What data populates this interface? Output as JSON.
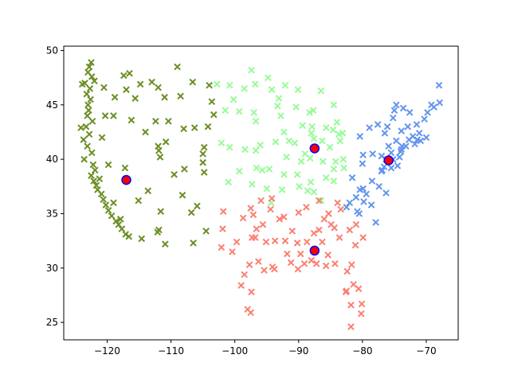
{
  "chart_data": {
    "type": "scatter",
    "title": "",
    "xlabel": "",
    "ylabel": "",
    "xlim": [
      -126.8,
      -65.0
    ],
    "ylim": [
      23.4,
      50.4
    ],
    "grid": false,
    "xticks": [
      -120,
      -110,
      -100,
      -90,
      -80,
      -70
    ],
    "yticks": [
      25,
      30,
      35,
      40,
      45,
      50
    ],
    "xtick_labels": [
      "−120",
      "−110",
      "−100",
      "−90",
      "−80",
      "−70"
    ],
    "ytick_labels": [
      "25",
      "30",
      "35",
      "40",
      "45",
      "50"
    ],
    "series": [
      {
        "color": "#6b8e23",
        "marker": "x",
        "points": [
          [
            -122.5,
            48.9
          ],
          [
            -122.8,
            48.5
          ],
          [
            -123.0,
            48.0
          ],
          [
            -122.4,
            47.6
          ],
          [
            -122.0,
            47.2
          ],
          [
            -123.5,
            47.0
          ],
          [
            -122.7,
            46.5
          ],
          [
            -123.2,
            46.0
          ],
          [
            -122.6,
            45.5
          ],
          [
            -123.0,
            45.0
          ],
          [
            -122.9,
            44.5
          ],
          [
            -123.1,
            44.0
          ],
          [
            -122.3,
            43.5
          ],
          [
            -123.3,
            43.0
          ],
          [
            -122.8,
            42.3
          ],
          [
            -123.7,
            41.8
          ],
          [
            -123.1,
            41.2
          ],
          [
            -122.4,
            40.6
          ],
          [
            -123.6,
            40.0
          ],
          [
            -122.2,
            39.5
          ],
          [
            -121.9,
            39.0
          ],
          [
            -122.5,
            38.5
          ],
          [
            -122.1,
            38.0
          ],
          [
            -121.7,
            37.6
          ],
          [
            -121.5,
            37.2
          ],
          [
            -120.9,
            36.8
          ],
          [
            -120.6,
            36.3
          ],
          [
            -120.2,
            35.8
          ],
          [
            -119.8,
            35.3
          ],
          [
            -119.3,
            34.8
          ],
          [
            -118.6,
            34.3
          ],
          [
            -118.2,
            34.0
          ],
          [
            -117.7,
            33.6
          ],
          [
            -117.1,
            33.1
          ],
          [
            -116.6,
            32.9
          ],
          [
            -117.9,
            34.5
          ],
          [
            -119.0,
            36.0
          ],
          [
            -121.2,
            38.2
          ],
          [
            -124.1,
            42.9
          ],
          [
            -123.9,
            46.9
          ],
          [
            -117.4,
            47.7
          ],
          [
            -116.5,
            47.9
          ],
          [
            -114.8,
            46.9
          ],
          [
            -112.0,
            46.6
          ],
          [
            -111.0,
            45.7
          ],
          [
            -108.5,
            45.8
          ],
          [
            -106.6,
            47.1
          ],
          [
            -104.0,
            46.8
          ],
          [
            -116.2,
            43.6
          ],
          [
            -114.0,
            42.5
          ],
          [
            -112.4,
            43.5
          ],
          [
            -111.9,
            40.8
          ],
          [
            -111.7,
            40.2
          ],
          [
            -112.0,
            41.2
          ],
          [
            -110.8,
            41.6
          ],
          [
            -108.0,
            42.8
          ],
          [
            -106.3,
            42.9
          ],
          [
            -104.8,
            41.1
          ],
          [
            -105.0,
            39.7
          ],
          [
            -104.8,
            38.8
          ],
          [
            -105.0,
            40.5
          ],
          [
            -107.9,
            39.1
          ],
          [
            -106.8,
            35.1
          ],
          [
            -105.9,
            35.7
          ],
          [
            -108.2,
            36.7
          ],
          [
            -104.5,
            33.4
          ],
          [
            -106.5,
            32.3
          ],
          [
            -111.9,
            33.5
          ],
          [
            -110.9,
            32.2
          ],
          [
            -112.1,
            33.3
          ],
          [
            -111.6,
            35.2
          ],
          [
            -113.6,
            37.1
          ],
          [
            -115.1,
            36.2
          ],
          [
            -119.8,
            39.5
          ],
          [
            -117.2,
            39.2
          ],
          [
            -114.6,
            32.7
          ],
          [
            -109.5,
            38.6
          ],
          [
            -103.3,
            44.1
          ],
          [
            -104.2,
            43.0
          ],
          [
            -103.6,
            45.3
          ],
          [
            -110.4,
            43.5
          ],
          [
            -109.0,
            48.5
          ],
          [
            -113.0,
            47.1
          ],
          [
            -115.6,
            45.6
          ],
          [
            -117.0,
            46.4
          ],
          [
            -118.8,
            45.7
          ],
          [
            -120.5,
            46.6
          ],
          [
            -120.3,
            44.0
          ],
          [
            -119.0,
            44.0
          ],
          [
            -120.8,
            42.0
          ]
        ]
      },
      {
        "color": "#98fb98",
        "marker": "x",
        "points": [
          [
            -87.6,
            41.9
          ],
          [
            -88.0,
            42.4
          ],
          [
            -87.9,
            43.0
          ],
          [
            -89.4,
            43.1
          ],
          [
            -88.3,
            44.3
          ],
          [
            -87.7,
            44.5
          ],
          [
            -90.4,
            44.8
          ],
          [
            -93.3,
            44.9
          ],
          [
            -93.1,
            45.6
          ],
          [
            -92.1,
            46.8
          ],
          [
            -94.2,
            46.4
          ],
          [
            -96.8,
            46.9
          ],
          [
            -98.5,
            46.5
          ],
          [
            -100.8,
            46.8
          ],
          [
            -97.0,
            44.3
          ],
          [
            -96.7,
            43.5
          ],
          [
            -99.3,
            44.4
          ],
          [
            -96.0,
            41.3
          ],
          [
            -96.7,
            40.8
          ],
          [
            -98.4,
            40.9
          ],
          [
            -100.8,
            41.1
          ],
          [
            -93.6,
            41.6
          ],
          [
            -91.5,
            41.7
          ],
          [
            -90.6,
            41.5
          ],
          [
            -92.3,
            42.5
          ],
          [
            -94.6,
            39.1
          ],
          [
            -92.3,
            38.6
          ],
          [
            -90.2,
            38.6
          ],
          [
            -89.6,
            39.8
          ],
          [
            -88.2,
            40.1
          ],
          [
            -89.0,
            40.5
          ],
          [
            -86.2,
            39.8
          ],
          [
            -85.1,
            41.1
          ],
          [
            -86.3,
            41.7
          ],
          [
            -84.6,
            42.7
          ],
          [
            -83.7,
            42.3
          ],
          [
            -83.1,
            42.4
          ],
          [
            -84.0,
            43.4
          ],
          [
            -85.7,
            42.9
          ],
          [
            -84.5,
            45.0
          ],
          [
            -83.5,
            41.7
          ],
          [
            -84.5,
            39.1
          ],
          [
            -83.0,
            40.0
          ],
          [
            -82.9,
            39.2
          ],
          [
            -84.2,
            39.8
          ],
          [
            -97.3,
            37.7
          ],
          [
            -95.7,
            39.0
          ],
          [
            -99.3,
            38.9
          ],
          [
            -101.0,
            37.9
          ],
          [
            -96.6,
            39.2
          ],
          [
            -85.7,
            38.3
          ],
          [
            -84.5,
            38.0
          ],
          [
            -87.6,
            37.0
          ],
          [
            -86.5,
            36.2
          ],
          [
            -92.6,
            37.2
          ],
          [
            -94.3,
            36.0
          ],
          [
            -95.0,
            37.3
          ],
          [
            -88.6,
            37.1
          ],
          [
            -89.9,
            37.5
          ],
          [
            -91.9,
            40.2
          ],
          [
            -102.8,
            46.9
          ],
          [
            -100.2,
            45.5
          ],
          [
            -97.4,
            48.2
          ],
          [
            -94.8,
            47.5
          ],
          [
            -101.5,
            44.5
          ],
          [
            -102.1,
            41.5
          ],
          [
            -92.8,
            44.0
          ],
          [
            -90.1,
            46.4
          ],
          [
            -86.5,
            46.3
          ],
          [
            -88.1,
            37.9
          ]
        ]
      },
      {
        "color": "#6495ed",
        "marker": "x",
        "points": [
          [
            -74.0,
            40.7
          ],
          [
            -73.8,
            41.2
          ],
          [
            -73.9,
            42.6
          ],
          [
            -76.1,
            43.0
          ],
          [
            -77.6,
            43.2
          ],
          [
            -78.9,
            42.9
          ],
          [
            -75.2,
            43.8
          ],
          [
            -73.6,
            44.7
          ],
          [
            -72.6,
            44.3
          ],
          [
            -71.5,
            43.2
          ],
          [
            -70.3,
            43.7
          ],
          [
            -69.8,
            44.3
          ],
          [
            -68.8,
            44.8
          ],
          [
            -67.9,
            45.2
          ],
          [
            -71.1,
            42.4
          ],
          [
            -71.4,
            41.8
          ],
          [
            -72.7,
            41.8
          ],
          [
            -73.2,
            41.2
          ],
          [
            -72.1,
            42.1
          ],
          [
            -70.9,
            41.7
          ],
          [
            -75.2,
            40.0
          ],
          [
            -76.3,
            40.0
          ],
          [
            -77.0,
            40.3
          ],
          [
            -79.9,
            40.4
          ],
          [
            -75.5,
            40.6
          ],
          [
            -74.2,
            40.2
          ],
          [
            -74.5,
            39.4
          ],
          [
            -75.5,
            39.2
          ],
          [
            -76.6,
            39.3
          ],
          [
            -77.0,
            38.9
          ],
          [
            -77.4,
            37.5
          ],
          [
            -76.3,
            36.9
          ],
          [
            -79.9,
            37.3
          ],
          [
            -78.5,
            38.0
          ],
          [
            -80.8,
            35.2
          ],
          [
            -78.6,
            35.8
          ],
          [
            -79.8,
            36.1
          ],
          [
            -77.9,
            34.2
          ],
          [
            -80.4,
            37.2
          ],
          [
            -81.6,
            38.3
          ],
          [
            -80.0,
            39.6
          ],
          [
            -82.5,
            35.6
          ],
          [
            -81.0,
            36.5
          ],
          [
            -76.5,
            42.4
          ],
          [
            -74.7,
            41.7
          ],
          [
            -73.9,
            40.9
          ],
          [
            -75.9,
            41.2
          ],
          [
            -78.4,
            40.5
          ],
          [
            -76.9,
            39.0
          ],
          [
            -79.4,
            36.8
          ],
          [
            -75.0,
            44.5
          ],
          [
            -72.9,
            43.0
          ],
          [
            -71.8,
            41.4
          ],
          [
            -70.0,
            42.0
          ],
          [
            -68.0,
            46.8
          ],
          [
            -69.2,
            45.0
          ],
          [
            -74.7,
            45.0
          ],
          [
            -80.4,
            42.1
          ],
          [
            -82.0,
            36.0
          ],
          [
            -80.5,
            35.0
          ]
        ]
      },
      {
        "color": "#fa8072",
        "marker": "x",
        "points": [
          [
            -90.1,
            29.9
          ],
          [
            -91.2,
            30.5
          ],
          [
            -93.7,
            32.5
          ],
          [
            -92.1,
            32.5
          ],
          [
            -90.2,
            32.3
          ],
          [
            -88.7,
            32.4
          ],
          [
            -89.1,
            30.4
          ],
          [
            -88.0,
            30.7
          ],
          [
            -86.8,
            33.5
          ],
          [
            -86.3,
            32.4
          ],
          [
            -85.4,
            31.2
          ],
          [
            -84.4,
            33.7
          ],
          [
            -83.6,
            32.8
          ],
          [
            -81.1,
            32.1
          ],
          [
            -82.0,
            33.5
          ],
          [
            -81.0,
            34.0
          ],
          [
            -79.9,
            32.8
          ],
          [
            -81.7,
            30.3
          ],
          [
            -82.5,
            27.9
          ],
          [
            -81.4,
            28.5
          ],
          [
            -80.2,
            25.8
          ],
          [
            -80.1,
            26.7
          ],
          [
            -81.8,
            26.6
          ],
          [
            -82.6,
            27.8
          ],
          [
            -84.3,
            30.4
          ],
          [
            -85.7,
            30.2
          ],
          [
            -87.2,
            30.4
          ],
          [
            -86.8,
            36.2
          ],
          [
            -85.3,
            35.0
          ],
          [
            -83.9,
            36.0
          ],
          [
            -90.0,
            35.1
          ],
          [
            -88.8,
            35.6
          ],
          [
            -92.3,
            34.7
          ],
          [
            -94.2,
            36.4
          ],
          [
            -94.4,
            35.4
          ],
          [
            -97.5,
            35.5
          ],
          [
            -95.9,
            36.2
          ],
          [
            -97.7,
            30.3
          ],
          [
            -95.4,
            29.8
          ],
          [
            -96.8,
            32.8
          ],
          [
            -97.3,
            32.8
          ],
          [
            -98.5,
            29.4
          ],
          [
            -97.4,
            27.8
          ],
          [
            -97.5,
            25.9
          ],
          [
            -94.1,
            30.1
          ],
          [
            -96.3,
            30.6
          ],
          [
            -99.7,
            32.4
          ],
          [
            -101.9,
            33.6
          ],
          [
            -101.8,
            35.2
          ],
          [
            -99.0,
            28.4
          ],
          [
            -98.0,
            26.2
          ],
          [
            -95.1,
            32.4
          ],
          [
            -100.4,
            31.5
          ],
          [
            -102.1,
            31.9
          ],
          [
            -96.6,
            33.6
          ],
          [
            -93.8,
            29.9
          ],
          [
            -81.8,
            24.6
          ],
          [
            -82.4,
            29.7
          ],
          [
            -80.6,
            28.1
          ],
          [
            -83.4,
            35.4
          ],
          [
            -84.9,
            34.0
          ],
          [
            -86.0,
            34.5
          ],
          [
            -87.6,
            33.2
          ],
          [
            -89.7,
            31.3
          ],
          [
            -91.8,
            31.3
          ],
          [
            -91.0,
            33.4
          ],
          [
            -93.0,
            34.5
          ],
          [
            -95.6,
            34.0
          ],
          [
            -97.1,
            34.9
          ],
          [
            -98.7,
            34.6
          ]
        ]
      }
    ],
    "centroids": {
      "face_color": "#ff0000",
      "edge_color": "#0000ff",
      "points": [
        [
          -117.0,
          38.1
        ],
        [
          -87.5,
          41.0
        ],
        [
          -75.9,
          39.9
        ],
        [
          -87.5,
          31.6
        ]
      ]
    }
  }
}
